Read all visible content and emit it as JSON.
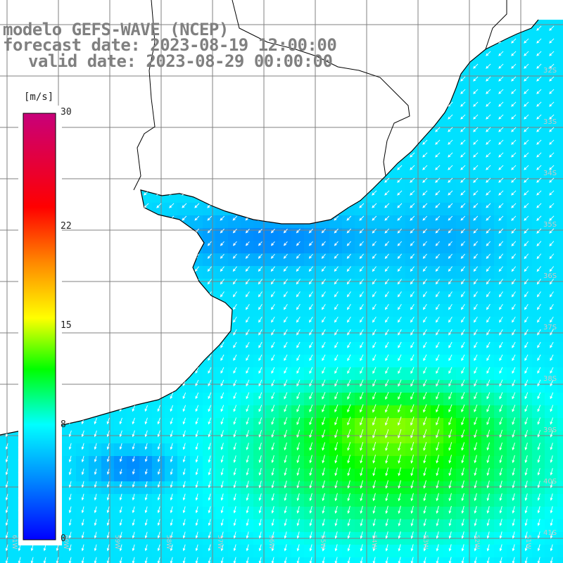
{
  "title": {
    "model": "modelo GEFS-WAVE (NCEP)",
    "forecast": "forecast date: 2023-08-19 12:00:00",
    "valid": "valid date: 2023-08-29 00:00:00"
  },
  "colorbar": {
    "unit": "[m/s]",
    "min": 0,
    "max": 30,
    "ticks": [
      {
        "value": 30,
        "label": "30"
      },
      {
        "value": 22,
        "label": "22"
      },
      {
        "value": 15,
        "label": "15"
      },
      {
        "value": 8,
        "label": "8"
      },
      {
        "value": 0,
        "label": "0"
      }
    ],
    "stops": [
      "#0000ff",
      "#00aaff",
      "#00ffff",
      "#00ff00",
      "#ffff00",
      "#ff8800",
      "#ff0000",
      "#c8007a"
    ]
  },
  "map": {
    "lon_labels": [
      "61W",
      "60W",
      "59W",
      "58W",
      "57W",
      "56W",
      "55W",
      "54W",
      "53W",
      "52W",
      "51W"
    ],
    "lat_labels": [
      "32S",
      "33S",
      "34S",
      "35S",
      "36S",
      "37S",
      "38S",
      "39S",
      "40S",
      "41S"
    ],
    "colors": {
      "land": "#ffffff",
      "coast": "#000000",
      "grid": "#808080",
      "arrow": "#ffffff"
    }
  }
}
